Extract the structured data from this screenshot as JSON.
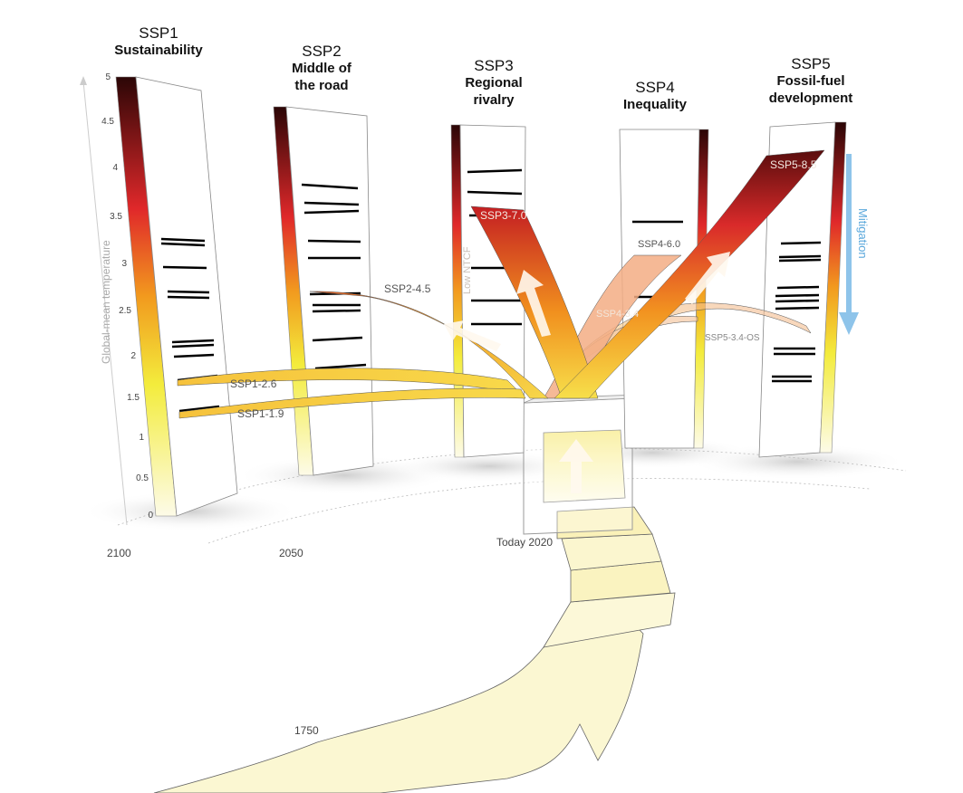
{
  "scenarios": [
    {
      "code": "SSP1",
      "name": "Sustainability"
    },
    {
      "code": "SSP2",
      "name": "Middle of the road"
    },
    {
      "code": "SSP3",
      "name": "Regional rivalry"
    },
    {
      "code": "SSP4",
      "name": "Inequality"
    },
    {
      "code": "SSP5",
      "name": "Fossil-fuel development"
    }
  ],
  "pathways": {
    "ssp1_19": "SSP1-1.9",
    "ssp1_26": "SSP1-2.6",
    "ssp2_45": "SSP2-4.5",
    "ssp3_70": "SSP3-7.0",
    "ssp4_60": "SSP4-6.0",
    "ssp4_34": "SSP4-3.4",
    "ssp5_85": "SSP5-8.5",
    "ssp5_34os": "SSP5-3.4-OS"
  },
  "axis": {
    "title": "Global-mean temperature",
    "ticks": [
      "0",
      "0.5",
      "1",
      "1.5",
      "2",
      "2.5",
      "3",
      "3.5",
      "4",
      "4.5",
      "5"
    ]
  },
  "years": {
    "y2100": "2100",
    "y2050": "2050",
    "today": "Today 2020",
    "y1750": "1750"
  },
  "annotations": {
    "low_ntcf": "Low NTCF",
    "mitigation": "Mitigation"
  },
  "colors": {
    "hot": "#3a0a0a",
    "red": "#d8282a",
    "orange": "#f28c1e",
    "yellow": "#f7ef5a",
    "pale": "#fdfbe8",
    "mitigation": "#8ec4ea"
  }
}
